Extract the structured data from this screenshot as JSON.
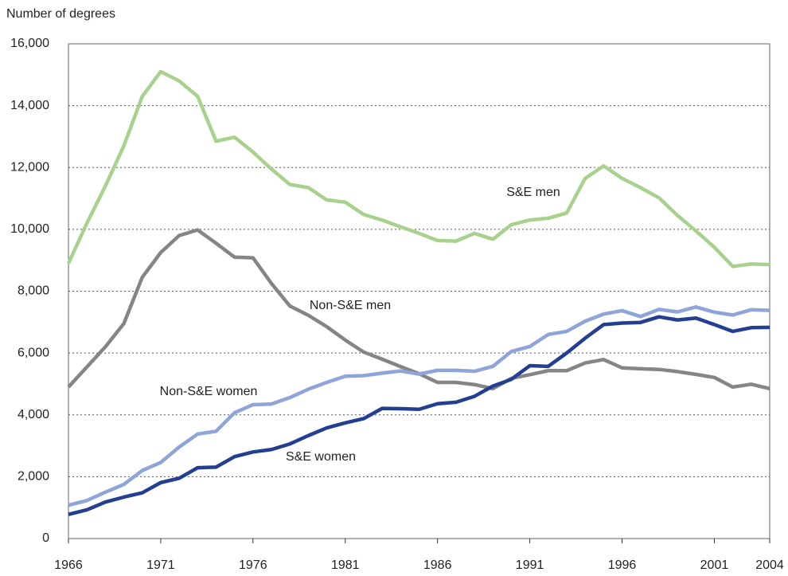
{
  "chart_data": {
    "type": "line",
    "ylabel": "Number of degrees",
    "x": [
      1966,
      1967,
      1968,
      1969,
      1970,
      1971,
      1972,
      1973,
      1974,
      1975,
      1976,
      1977,
      1978,
      1979,
      1980,
      1981,
      1982,
      1983,
      1984,
      1985,
      1986,
      1987,
      1988,
      1989,
      1990,
      1991,
      1992,
      1993,
      1994,
      1995,
      1996,
      1997,
      1998,
      1999,
      2000,
      2001,
      2002,
      2003,
      2004
    ],
    "xlim": [
      1966,
      2004
    ],
    "xticks": [
      1966,
      1971,
      1976,
      1981,
      1986,
      1991,
      1996,
      2001,
      2004
    ],
    "ylim": [
      0,
      16000
    ],
    "yticks": [
      0,
      {
        "value": 2000,
        "label": "2,000"
      },
      {
        "value": 4000,
        "label": "4,000"
      },
      {
        "value": 6000,
        "label": "6,000"
      },
      {
        "value": 8000,
        "label": "8,000"
      },
      {
        "value": 10000,
        "label": "10,000"
      },
      {
        "value": 12000,
        "label": "12,000"
      },
      {
        "value": 14000,
        "label": "14,000"
      },
      {
        "value": 16000,
        "label": "16,000"
      }
    ],
    "grid": true,
    "series": [
      {
        "name": "S&E men",
        "color": "#a9d18e",
        "values": [
          8900,
          10200,
          11400,
          12700,
          14300,
          15100,
          14800,
          14300,
          12850,
          12980,
          12500,
          11950,
          11450,
          11350,
          10950,
          10880,
          10480,
          10300,
          10080,
          9870,
          9640,
          9620,
          9870,
          9680,
          10150,
          10300,
          10360,
          10530,
          11650,
          12050,
          11650,
          11350,
          11020,
          10450,
          9950,
          9420,
          8800,
          8880,
          8860
        ]
      },
      {
        "name": "Non-S&E men",
        "color": "#858585",
        "values": [
          4900,
          5550,
          6200,
          6950,
          8450,
          9250,
          9800,
          9980,
          9550,
          9100,
          9080,
          8250,
          7520,
          7220,
          6850,
          6420,
          6030,
          5800,
          5560,
          5330,
          5050,
          5050,
          4980,
          4850,
          5180,
          5300,
          5430,
          5430,
          5680,
          5790,
          5520,
          5490,
          5470,
          5400,
          5310,
          5210,
          4900,
          4990,
          4850
        ]
      },
      {
        "name": "Non-S&E women",
        "color": "#8fa4d8",
        "values": [
          1080,
          1230,
          1500,
          1750,
          2200,
          2460,
          2960,
          3380,
          3470,
          4070,
          4330,
          4350,
          4560,
          4830,
          5050,
          5250,
          5270,
          5350,
          5420,
          5320,
          5440,
          5440,
          5410,
          5570,
          6050,
          6210,
          6600,
          6700,
          7030,
          7260,
          7370,
          7180,
          7410,
          7330,
          7490,
          7320,
          7230,
          7400,
          7380
        ]
      },
      {
        "name": "S&E women",
        "color": "#243f92",
        "values": [
          780,
          930,
          1180,
          1340,
          1480,
          1810,
          1950,
          2290,
          2310,
          2650,
          2800,
          2880,
          3060,
          3330,
          3580,
          3740,
          3880,
          4210,
          4200,
          4180,
          4360,
          4410,
          4600,
          4930,
          5150,
          5590,
          5570,
          6000,
          6480,
          6920,
          6970,
          6990,
          7170,
          7070,
          7130,
          6920,
          6700,
          6820,
          6830
        ]
      }
    ]
  }
}
